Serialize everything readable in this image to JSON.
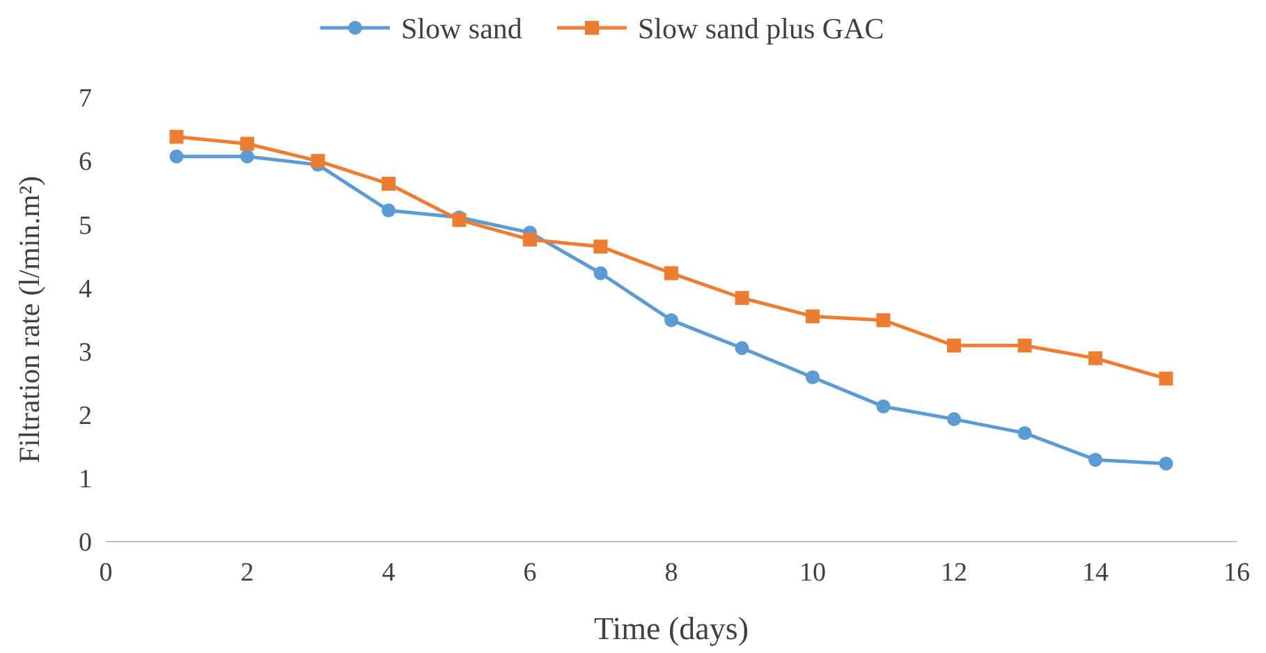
{
  "chart_data": {
    "type": "line",
    "xlabel": "Time (days)",
    "ylabel": "Filtration rate (l/min.m²)",
    "x": [
      1,
      2,
      3,
      4,
      5,
      6,
      7,
      8,
      9,
      10,
      11,
      12,
      13,
      14,
      15
    ],
    "xlim": [
      0,
      16
    ],
    "xticks": [
      0,
      2,
      4,
      6,
      8,
      10,
      12,
      14,
      16
    ],
    "ylim": [
      0,
      7
    ],
    "yticks": [
      0,
      1,
      2,
      3,
      4,
      5,
      6,
      7
    ],
    "legend": "top",
    "grid": false,
    "series": [
      {
        "name": "Slow sand",
        "color": "#5b9bd5",
        "marker": "circle",
        "values": [
          6.07,
          6.07,
          5.94,
          5.22,
          5.11,
          4.87,
          4.23,
          3.49,
          3.05,
          2.59,
          2.13,
          1.93,
          1.71,
          1.29,
          1.23
        ]
      },
      {
        "name": "Slow sand plus GAC",
        "color": "#ed7d31",
        "marker": "square",
        "values": [
          6.38,
          6.27,
          6.0,
          5.64,
          5.07,
          4.76,
          4.65,
          4.23,
          3.84,
          3.55,
          3.49,
          3.09,
          3.09,
          2.89,
          2.57
        ]
      }
    ]
  }
}
